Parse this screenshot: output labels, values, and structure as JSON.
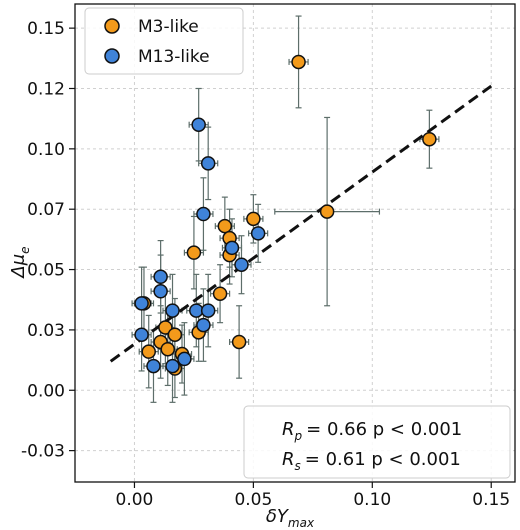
{
  "chart_data": {
    "type": "scatter",
    "xlabel": "δY",
    "xlabel_sub": "max",
    "ylabel": "Δμ",
    "ylabel_sub": "e",
    "xlim": [
      -0.025,
      0.16
    ],
    "ylim": [
      -0.038,
      0.16
    ],
    "xticks": [
      0.0,
      0.05,
      0.1,
      0.15
    ],
    "xtick_labels": [
      "0.00",
      "0.05",
      "0.10",
      "0.15"
    ],
    "yticks": [
      -0.025,
      0.0,
      0.025,
      0.05,
      0.075,
      0.1,
      0.125,
      0.15
    ],
    "ytick_labels": [
      "-0.03",
      "0.00",
      "0.03",
      "0.05",
      "0.07",
      "0.10",
      "0.12",
      "0.15"
    ],
    "grid": true,
    "legend_position": "top-left",
    "series": [
      {
        "name": "M3-like",
        "color": "#f39a1b",
        "points": [
          {
            "x": 0.069,
            "y": 0.136,
            "xerr": 0.004,
            "yerr": 0.019
          },
          {
            "x": 0.124,
            "y": 0.104,
            "xerr": 0.004,
            "yerr": 0.012
          },
          {
            "x": 0.081,
            "y": 0.074,
            "xerr": 0.022,
            "yerr": 0.039
          },
          {
            "x": 0.05,
            "y": 0.071,
            "xerr": 0.004,
            "yerr": 0.01
          },
          {
            "x": 0.038,
            "y": 0.068,
            "xerr": 0.004,
            "yerr": 0.012
          },
          {
            "x": 0.04,
            "y": 0.063,
            "xerr": 0.004,
            "yerr": 0.012
          },
          {
            "x": 0.04,
            "y": 0.056,
            "xerr": 0.004,
            "yerr": 0.012
          },
          {
            "x": 0.025,
            "y": 0.057,
            "xerr": 0.004,
            "yerr": 0.015
          },
          {
            "x": 0.036,
            "y": 0.04,
            "xerr": 0.004,
            "yerr": 0.012
          },
          {
            "x": 0.004,
            "y": 0.036,
            "xerr": 0.004,
            "yerr": 0.015
          },
          {
            "x": 0.027,
            "y": 0.024,
            "xerr": 0.004,
            "yerr": 0.012
          },
          {
            "x": 0.013,
            "y": 0.026,
            "xerr": 0.004,
            "yerr": 0.015
          },
          {
            "x": 0.017,
            "y": 0.023,
            "xerr": 0.004,
            "yerr": 0.015
          },
          {
            "x": 0.011,
            "y": 0.02,
            "xerr": 0.004,
            "yerr": 0.015
          },
          {
            "x": 0.014,
            "y": 0.017,
            "xerr": 0.004,
            "yerr": 0.015
          },
          {
            "x": 0.006,
            "y": 0.016,
            "xerr": 0.004,
            "yerr": 0.015
          },
          {
            "x": 0.044,
            "y": 0.02,
            "xerr": 0.004,
            "yerr": 0.015
          },
          {
            "x": 0.017,
            "y": 0.009,
            "xerr": 0.004,
            "yerr": 0.012
          },
          {
            "x": 0.02,
            "y": 0.015,
            "xerr": 0.004,
            "yerr": 0.012
          }
        ]
      },
      {
        "name": "M13-like",
        "color": "#3f83d9",
        "points": [
          {
            "x": 0.027,
            "y": 0.11,
            "xerr": 0.004,
            "yerr": 0.015
          },
          {
            "x": 0.031,
            "y": 0.094,
            "xerr": 0.004,
            "yerr": 0.015
          },
          {
            "x": 0.029,
            "y": 0.073,
            "xerr": 0.004,
            "yerr": 0.015
          },
          {
            "x": 0.052,
            "y": 0.065,
            "xerr": 0.004,
            "yerr": 0.012
          },
          {
            "x": 0.041,
            "y": 0.059,
            "xerr": 0.004,
            "yerr": 0.012
          },
          {
            "x": 0.045,
            "y": 0.052,
            "xerr": 0.004,
            "yerr": 0.012
          },
          {
            "x": 0.011,
            "y": 0.047,
            "xerr": 0.004,
            "yerr": 0.015
          },
          {
            "x": 0.011,
            "y": 0.041,
            "xerr": 0.004,
            "yerr": 0.015
          },
          {
            "x": 0.003,
            "y": 0.036,
            "xerr": 0.004,
            "yerr": 0.015
          },
          {
            "x": 0.016,
            "y": 0.033,
            "xerr": 0.004,
            "yerr": 0.015
          },
          {
            "x": 0.026,
            "y": 0.033,
            "xerr": 0.004,
            "yerr": 0.015
          },
          {
            "x": 0.031,
            "y": 0.033,
            "xerr": 0.004,
            "yerr": 0.015
          },
          {
            "x": 0.029,
            "y": 0.027,
            "xerr": 0.004,
            "yerr": 0.015
          },
          {
            "x": 0.003,
            "y": 0.023,
            "xerr": 0.004,
            "yerr": 0.015
          },
          {
            "x": 0.008,
            "y": 0.01,
            "xerr": 0.004,
            "yerr": 0.015
          },
          {
            "x": 0.016,
            "y": 0.01,
            "xerr": 0.004,
            "yerr": 0.015
          },
          {
            "x": 0.021,
            "y": 0.013,
            "xerr": 0.004,
            "yerr": 0.015
          }
        ]
      }
    ],
    "fit_line": {
      "x": [
        -0.01,
        0.15
      ],
      "y": [
        0.012,
        0.126
      ]
    },
    "stats": [
      {
        "symbol": "R",
        "sub": "p",
        "value": "=  0.66 p < 0.001"
      },
      {
        "symbol": "R",
        "sub": "s",
        "value": "=  0.61 p < 0.001"
      }
    ]
  }
}
